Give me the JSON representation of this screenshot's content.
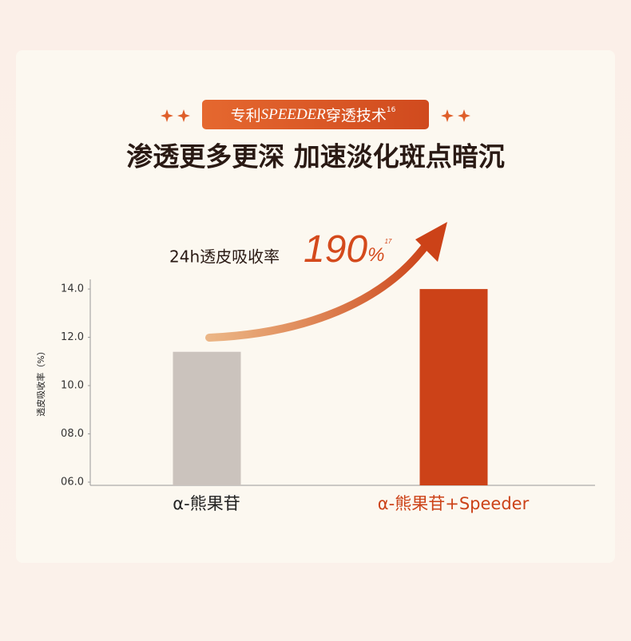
{
  "badge": {
    "prefix": "专利",
    "brand": "SPEEDER",
    "suffix": "穿透技术",
    "note": "16"
  },
  "headline": "渗透更多更深 加速淡化斑点暗沉",
  "annotation": {
    "text": "24h透皮吸收率",
    "value": "190",
    "unit": "%",
    "note": "17"
  },
  "chart_data": {
    "type": "bar",
    "y_label": "透皮吸收率（%）",
    "categories": [
      "α-熊果苷",
      "α-熊果苷+Speeder"
    ],
    "values": [
      11.4,
      14.0
    ],
    "colors": [
      "#cbc3bd",
      "#cc4218"
    ],
    "ylim": [
      6,
      14.4
    ],
    "yticks": [
      {
        "value": 6,
        "label": "06.0"
      },
      {
        "value": 8,
        "label": "08.0"
      },
      {
        "value": 10,
        "label": "10.0"
      },
      {
        "value": 12,
        "label": "12.0"
      },
      {
        "value": 14,
        "label": "14.0"
      }
    ],
    "grid": false
  }
}
